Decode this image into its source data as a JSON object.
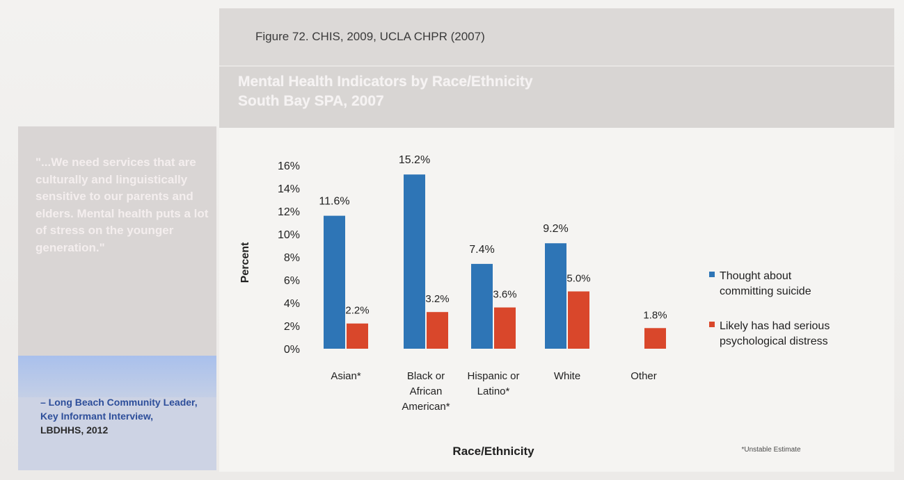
{
  "figure": {
    "caption": "Figure 72. CHIS, 2009, UCLA CHPR (2007)",
    "title_line1": "Mental Health Indicators by Race/Ethnicity",
    "title_line2": "South Bay SPA, 2007"
  },
  "quote": {
    "text": "\"...We need services that are culturally and linguistically sensitive to our parents and elders. Mental health puts a lot of stress on the younger generation.\"",
    "attribution": "– Long Beach Community Leader, Key Informant Interview,",
    "org": "LBDHHS, 2012"
  },
  "footnote": "*Unstable Estimate",
  "colors": {
    "series1": "#2e75b6",
    "series2": "#d9472b"
  },
  "chart_data": {
    "type": "bar",
    "title": "Mental Health Indicators by Race/Ethnicity South Bay SPA, 2007",
    "xlabel": "Race/Ethnicity",
    "ylabel": "Percent",
    "ylim": [
      0,
      16
    ],
    "yticks": [
      "0%",
      "2%",
      "4%",
      "6%",
      "8%",
      "10%",
      "12%",
      "14%",
      "16%"
    ],
    "grid": false,
    "legend_position": "right",
    "categories": [
      [
        "Asian*"
      ],
      [
        "Black or",
        "African",
        "American*"
      ],
      [
        "Hispanic or",
        "Latino*"
      ],
      [
        "White"
      ],
      [
        "Other"
      ]
    ],
    "series": [
      {
        "name": "Thought about committing suicide",
        "legend_lines": [
          "Thought about",
          "committing suicide"
        ],
        "values": [
          11.6,
          15.2,
          7.4,
          9.2,
          null
        ],
        "labels": [
          "11.6%",
          "15.2%",
          "7.4%",
          "9.2%",
          ""
        ]
      },
      {
        "name": "Likely has had serious psychological distress",
        "legend_lines": [
          "Likely has had serious",
          "psychological distress"
        ],
        "values": [
          2.2,
          3.2,
          3.6,
          5.0,
          1.8
        ],
        "labels": [
          "2.2%",
          "3.2%",
          "3.6%",
          "5.0%",
          "1.8%"
        ]
      }
    ]
  }
}
